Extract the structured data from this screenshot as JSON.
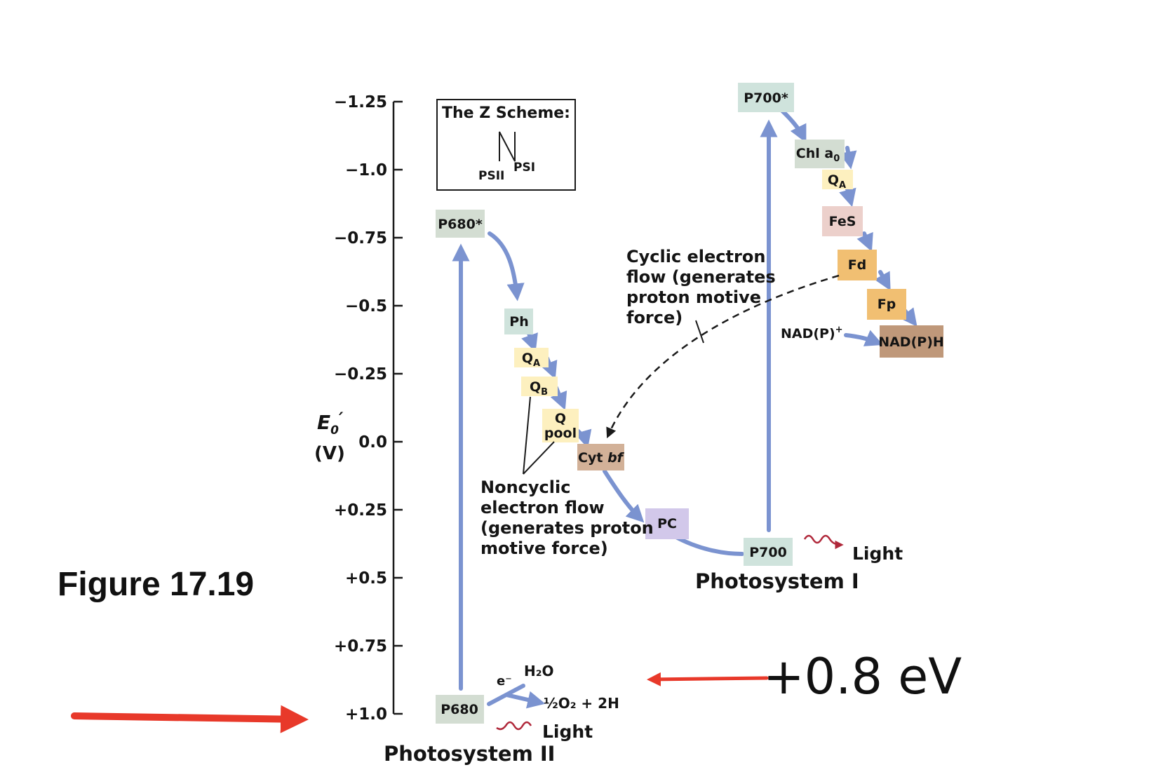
{
  "figure_caption": "Figure 17.19",
  "energy_gap": "+0.8 eV",
  "axis": {
    "label_main": "E",
    "label_sub": "0",
    "label_prime": "′",
    "unit": "(V)",
    "ticks": [
      "−1.25",
      "−1.0",
      "−0.75",
      "−0.5",
      "−0.25",
      "0.0",
      "+0.25",
      "+0.5",
      "+0.75",
      "+1.0"
    ]
  },
  "inset": {
    "title": "The Z Scheme:",
    "psii": "PSII",
    "psi": "PSI"
  },
  "photosystem2": {
    "name": "Photosystem II",
    "p680": "P680",
    "p680_excited": "P680*",
    "electron": "e⁻",
    "water": "H₂O",
    "oxygen": "½O₂ + 2H",
    "light": "Light"
  },
  "chain": {
    "ph": "Ph",
    "qa": "Q",
    "qa_sub": "A",
    "qb": "Q",
    "qb_sub": "B",
    "qpool_1": "Q",
    "qpool_2": "pool",
    "cytbf_1": "Cyt ",
    "cytbf_2": "bf",
    "pc": "PC"
  },
  "photosystem1": {
    "name": "Photosystem I",
    "p700": "P700",
    "p700_excited": "P700*",
    "chla0": "Chl a",
    "chla0_sub": "0",
    "qa": "Q",
    "qa_sub": "A",
    "fes": "FeS",
    "fd": "Fd",
    "fp": "Fp",
    "nadp": "NAD(P)",
    "nadp_sup": "+",
    "nadph": "NAD(P)H",
    "light": "Light"
  },
  "annotations": {
    "noncyclic": [
      "Noncyclic",
      "electron flow",
      "(generates proton",
      "motive force)"
    ],
    "cyclic": [
      "Cyclic electron",
      "flow (generates",
      "proton motive",
      "force)"
    ]
  },
  "colors": {
    "arrow_blue": "#7b93d0",
    "red_arrow": "#e8392a",
    "light_squiggle": "#b0283a",
    "box_gray_green": "#d3ddd2",
    "box_mint": "#cfe3dc",
    "box_yellow": "#fdf0bf",
    "box_tan": "#d2b198",
    "box_lavender": "#d2c8ea",
    "box_pink": "#ecd0cb",
    "box_orange": "#f1bf72",
    "box_brown": "#bf987a"
  }
}
